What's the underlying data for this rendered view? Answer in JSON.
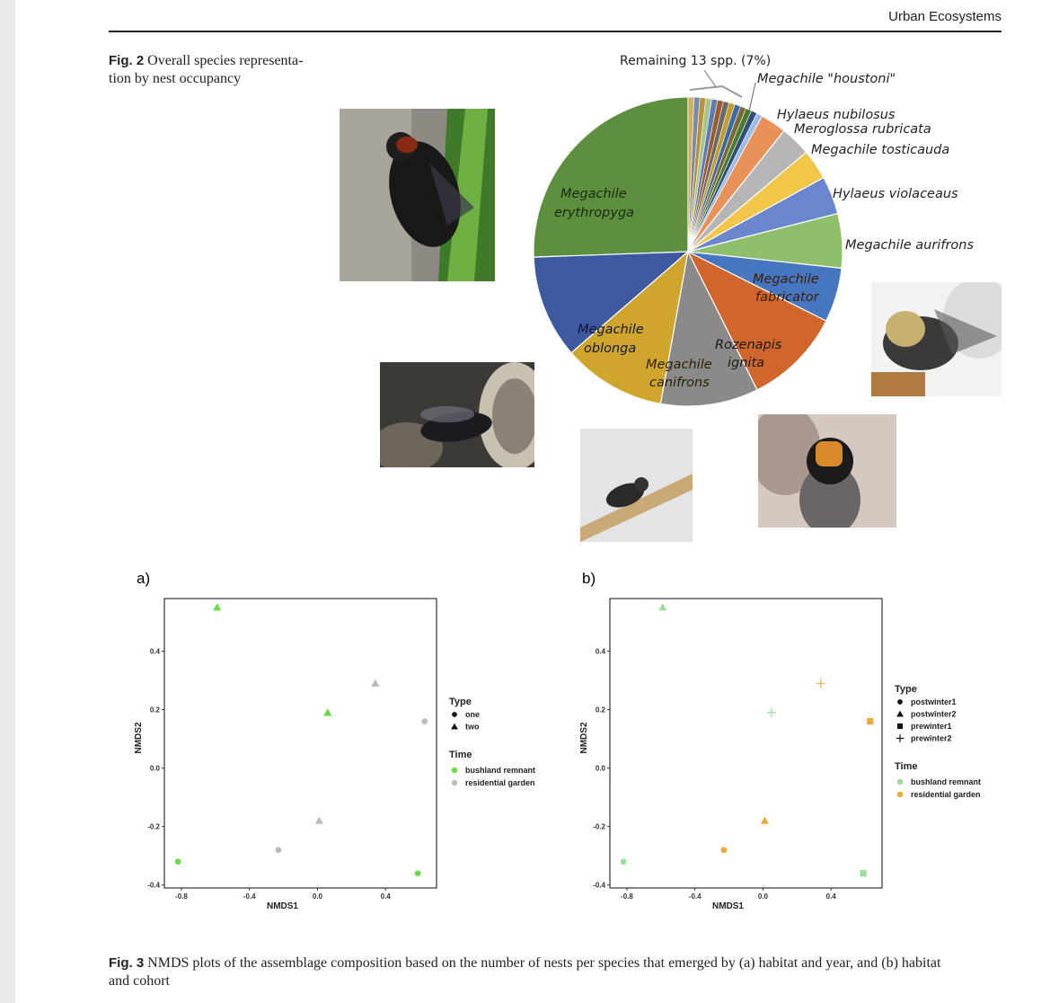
{
  "header": {
    "journal": "Urban Ecosystems"
  },
  "fig2": {
    "label": "Fig. 2",
    "caption_line1": "Overall species representa-",
    "caption_line2": "tion by nest occupancy"
  },
  "fig3": {
    "label": "Fig. 3",
    "caption_line1": "NMDS plots of the assemblage composition based on the number of nests per species that emerged by (a) habitat and year, and (b) habitat",
    "caption_line2": "and cohort"
  },
  "chart_data": [
    {
      "type": "pie",
      "slices": [
        {
          "label": "Megachile erythropyga",
          "value": 22.5,
          "color": "#5e8f3e"
        },
        {
          "label": "Megachile oblonga",
          "value": 9.5,
          "color": "#3f59a0"
        },
        {
          "label": "Megachile canifrons",
          "value": 9.5,
          "color": "#d0a52c"
        },
        {
          "label": "Rozenapis ignita",
          "value": 9.0,
          "color": "#8a8a8a"
        },
        {
          "label": "Megachile fabricator",
          "value": 9.0,
          "color": "#d0662c"
        },
        {
          "label": "Megachile aurifrons",
          "value": 5.0,
          "color": "#4676c0"
        },
        {
          "label": "Hylaeus violaceaus",
          "value": 5.0,
          "color": "#8fbf6a"
        },
        {
          "label": "Megachile tosticauda",
          "value": 3.5,
          "color": "#6a86cf"
        },
        {
          "label": "Meroglossa rubricata",
          "value": 2.8,
          "color": "#f2c648"
        },
        {
          "label": "Hylaeus nubilosus",
          "value": 2.8,
          "color": "#b5b5b5"
        },
        {
          "label": "Megachile \"houstoni\"",
          "value": 2.4,
          "color": "#e8925a"
        },
        {
          "label": "Remaining 13 spp. (7%)",
          "value": 7.0,
          "color": "#9bbbe4"
        }
      ],
      "remaining_colors": [
        "#9bbbe4",
        "#2f4e7a",
        "#4c7a2c",
        "#7a6a3a",
        "#3a6aa8",
        "#c49a2a",
        "#6a6a6a",
        "#9e5a2a",
        "#5a7ab8",
        "#a8c48a",
        "#b8923a",
        "#7a8aa8",
        "#d0b060"
      ],
      "label_texts": {
        "remaining": "Remaining 13 spp. (7%)",
        "houstoni": "Megachile \"houstoni\"",
        "nubilosus": "Hylaeus nubilosus",
        "rubricata": "Meroglossa rubricata",
        "tosticauda": "Megachile tosticauda",
        "violaceaus": "Hylaeus violaceaus",
        "aurifrons": "Megachile aurifrons",
        "fabricator_1": "Megachile",
        "fabricator_2": "fabricator",
        "rozenapis_1": "Rozenapis",
        "rozenapis_2": "ignita",
        "canifrons_1": "Megachile",
        "canifrons_2": "canifrons",
        "oblonga_1": "Megachile",
        "oblonga_2": "oblonga",
        "erythropyga_1": "Megachile",
        "erythropyga_2": "erythropyga"
      }
    },
    {
      "type": "scatter",
      "panel": "a)",
      "xlabel": "NMDS1",
      "ylabel": "NMDS2",
      "xlim": [
        -0.9,
        0.7
      ],
      "ylim": [
        -0.41,
        0.58
      ],
      "xticks": [
        -0.8,
        -0.4,
        0.0,
        0.4
      ],
      "xtick_labels": [
        "-0.8",
        "-0.4",
        "0.0",
        "0.4"
      ],
      "yticks": [
        -0.4,
        -0.2,
        0.0,
        0.2,
        0.4
      ],
      "ytick_labels": [
        "-0.4",
        "-0.2",
        "0.0",
        "0.2",
        "0.4"
      ],
      "legend": {
        "type_title": "Type",
        "type_items": [
          {
            "label": "one",
            "shape": "circle"
          },
          {
            "label": "two",
            "shape": "triangle"
          }
        ],
        "time_title": "Time",
        "time_items": [
          {
            "label": "bushland remnant",
            "color": "#66dd44"
          },
          {
            "label": "residential garden",
            "color": "#bbbbbb"
          }
        ]
      },
      "points": [
        {
          "x": -0.82,
          "y": -0.32,
          "shape": "circle",
          "color": "#66dd44"
        },
        {
          "x": -0.59,
          "y": 0.55,
          "shape": "triangle",
          "color": "#66dd44"
        },
        {
          "x": 0.06,
          "y": 0.19,
          "shape": "triangle",
          "color": "#66dd44"
        },
        {
          "x": 0.59,
          "y": -0.36,
          "shape": "circle",
          "color": "#66dd44"
        },
        {
          "x": -0.23,
          "y": -0.28,
          "shape": "circle",
          "color": "#bbbbbb"
        },
        {
          "x": 0.01,
          "y": -0.18,
          "shape": "triangle",
          "color": "#bbbbbb"
        },
        {
          "x": 0.34,
          "y": 0.29,
          "shape": "triangle",
          "color": "#bbbbbb"
        },
        {
          "x": 0.63,
          "y": 0.16,
          "shape": "circle",
          "color": "#bbbbbb"
        }
      ]
    },
    {
      "type": "scatter",
      "panel": "b)",
      "xlabel": "NMDS1",
      "ylabel": "NMDS2",
      "xlim": [
        -0.9,
        0.7
      ],
      "ylim": [
        -0.41,
        0.58
      ],
      "xticks": [
        -0.8,
        -0.4,
        0.0,
        0.4
      ],
      "xtick_labels": [
        "-0.8",
        "-0.4",
        "0.0",
        "0.4"
      ],
      "yticks": [
        -0.4,
        -0.2,
        0.0,
        0.2,
        0.4
      ],
      "ytick_labels": [
        "-0.4",
        "-0.2",
        "0.0",
        "0.2",
        "0.4"
      ],
      "legend": {
        "type_title": "Type",
        "type_items": [
          {
            "label": "postwinter1",
            "shape": "circle"
          },
          {
            "label": "postwinter2",
            "shape": "triangle"
          },
          {
            "label": "prewinter1",
            "shape": "square"
          },
          {
            "label": "prewinter2",
            "shape": "plus"
          }
        ],
        "time_title": "Time",
        "time_items": [
          {
            "label": "bushland remnant",
            "color": "#99dd99"
          },
          {
            "label": "residential garden",
            "color": "#eeaa33"
          }
        ]
      },
      "points": [
        {
          "x": -0.82,
          "y": -0.32,
          "shape": "circle",
          "color": "#99dd99"
        },
        {
          "x": -0.59,
          "y": 0.55,
          "shape": "triangle",
          "color": "#99dd99"
        },
        {
          "x": 0.05,
          "y": 0.19,
          "shape": "plus",
          "color": "#99dd99"
        },
        {
          "x": 0.59,
          "y": -0.36,
          "shape": "square",
          "color": "#99dd99"
        },
        {
          "x": -0.23,
          "y": -0.28,
          "shape": "circle",
          "color": "#eeaa33"
        },
        {
          "x": 0.01,
          "y": -0.18,
          "shape": "triangle",
          "color": "#eeaa33"
        },
        {
          "x": 0.34,
          "y": 0.29,
          "shape": "plus",
          "color": "#eeaa33"
        },
        {
          "x": 0.63,
          "y": 0.16,
          "shape": "square",
          "color": "#eeaa33"
        }
      ]
    }
  ]
}
